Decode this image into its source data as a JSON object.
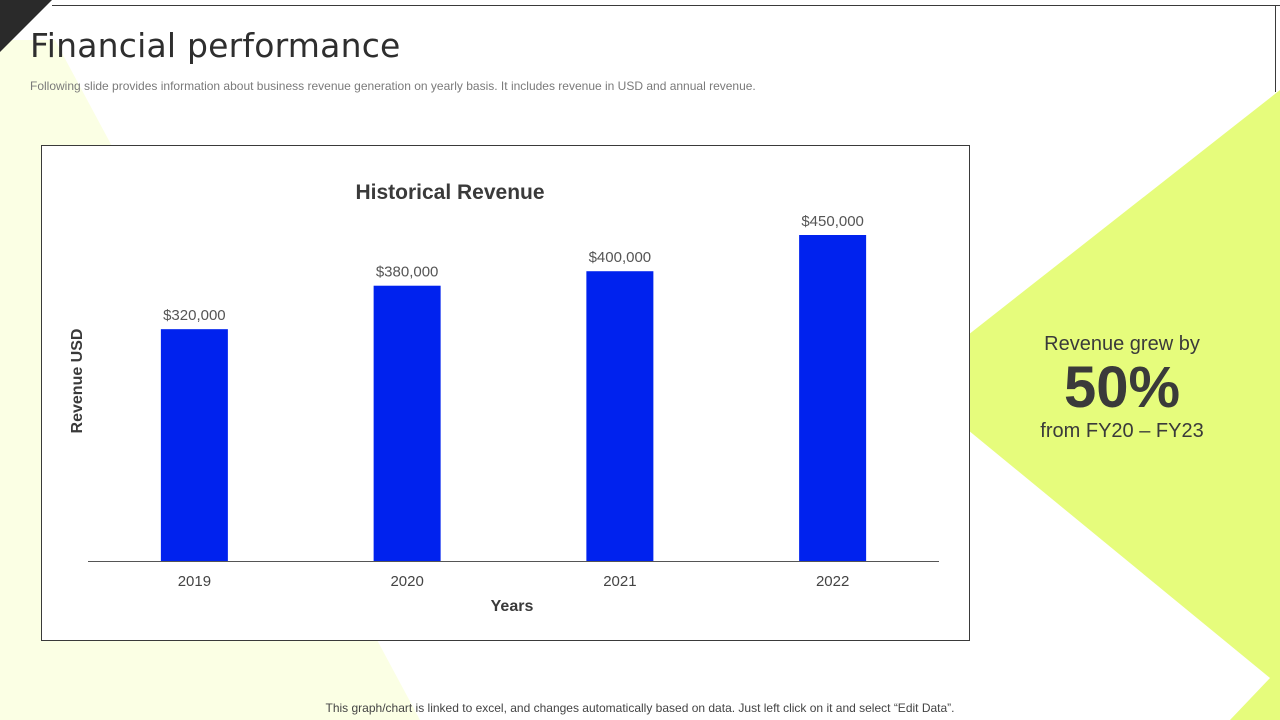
{
  "slide": {
    "title": "Financial performance",
    "subtitle": "Following slide provides information about business revenue generation on yearly basis. It includes revenue in USD and annual revenue.",
    "footnote": "This graph/chart is linked to excel,  and changes automatically based on data. Just left click on it and select “Edit Data”.",
    "accent_color": "#e6fc7c",
    "accent_light_color": "#fbffe4"
  },
  "callout": {
    "line1": "Revenue grew by",
    "value": "50%",
    "line3": "from FY20 – FY23"
  },
  "chart_data": {
    "type": "bar",
    "title": "Historical Revenue",
    "xlabel": "Years",
    "ylabel": "Revenue USD",
    "categories": [
      "2019",
      "2020",
      "2021",
      "2022"
    ],
    "values": [
      320000,
      380000,
      400000,
      450000
    ],
    "data_labels": [
      "$320,000",
      "$380,000",
      "$400,000",
      "$450,000"
    ],
    "ylim": [
      0,
      450000
    ],
    "bar_color": "#0022ee",
    "grid": false,
    "legend": "none"
  }
}
